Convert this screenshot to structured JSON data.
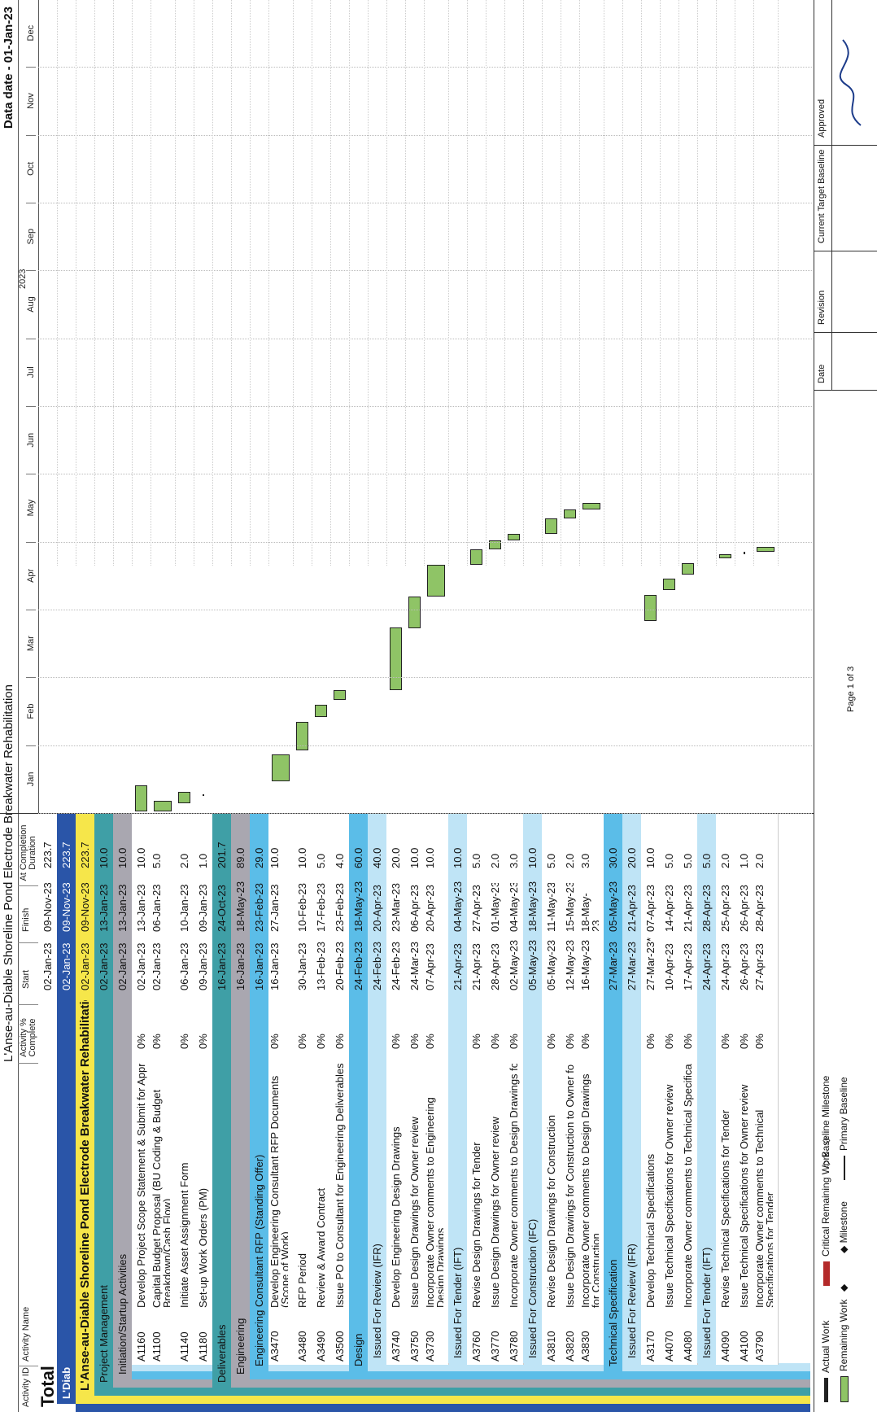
{
  "page": {
    "title": "L'Anse-au-Diable Shoreline Pond Electrode Breakwater Rehabilitation",
    "data_date": "Data date - 01-Jan-23",
    "page_number": "Page 1 of 3"
  },
  "columns": {
    "id": "Activity ID",
    "name": "Activity Name",
    "pct": "Activity % Complete",
    "start": "Start",
    "finish": "Finish",
    "dur": "At Completion Duration"
  },
  "timeline": {
    "year": "2023",
    "months": [
      "Jan",
      "Feb",
      "Mar",
      "Apr",
      "May",
      "Jun",
      "Jul",
      "Aug",
      "Sep",
      "Oct",
      "Nov",
      "Dec"
    ]
  },
  "colors": {
    "total": "#ffffff",
    "l1": "#2a55a8",
    "l2": "#f6e64a",
    "l3": "#3f9fa6",
    "l4": "#a9a7b0",
    "l5": "#5bbde8",
    "l6": "#bfe4f6",
    "bar": "#8fc466"
  },
  "rows": [
    {
      "kind": "group",
      "level": 0,
      "name": "Total",
      "start": "02-Jan-23",
      "finish": "09-Nov-23",
      "dur": "223.7"
    },
    {
      "kind": "group",
      "level": 1,
      "name": "L'Diab",
      "start": "02-Jan-23",
      "finish": "09-Nov-23",
      "dur": "223.7"
    },
    {
      "kind": "group",
      "level": 2,
      "name": "L'Anse-au-Diable Shoreline Pond Electrode Breakwater Rehabilitation",
      "start": "02-Jan-23",
      "finish": "09-Nov-23",
      "dur": "223.7"
    },
    {
      "kind": "group",
      "level": 3,
      "name": "Project Management",
      "start": "02-Jan-23",
      "finish": "13-Jan-23",
      "dur": "10.0"
    },
    {
      "kind": "group",
      "level": 4,
      "name": "Initiation/Startup Activities",
      "start": "02-Jan-23",
      "finish": "13-Jan-23",
      "dur": "10.0"
    },
    {
      "kind": "task",
      "id": "A1160",
      "name": "Develop Project Scope Statement & Submit for Approval",
      "pct": "0%",
      "start": "02-Jan-23",
      "finish": "13-Jan-23",
      "dur": "10.0"
    },
    {
      "kind": "task",
      "id": "A1100",
      "name": "Capital Budget Proposal (BU Coding & Budget Breakdown/Cash Flow)",
      "pct": "0%",
      "start": "02-Jan-23",
      "finish": "06-Jan-23",
      "dur": "5.0",
      "tall": true
    },
    {
      "kind": "task",
      "id": "A1140",
      "name": "Initiate Asset Assignment Form",
      "pct": "0%",
      "start": "06-Jan-23",
      "finish": "10-Jan-23",
      "dur": "2.0"
    },
    {
      "kind": "task",
      "id": "A1180",
      "name": "Set-up Work Orders (PM)",
      "pct": "0%",
      "start": "09-Jan-23",
      "finish": "09-Jan-23",
      "dur": "1.0"
    },
    {
      "kind": "group",
      "level": 3,
      "name": "Deliverables",
      "start": "16-Jan-23",
      "finish": "24-Oct-23",
      "dur": "201.7"
    },
    {
      "kind": "group",
      "level": 4,
      "name": "Engineering",
      "start": "16-Jan-23",
      "finish": "18-May-23",
      "dur": "89.0"
    },
    {
      "kind": "group",
      "level": 5,
      "name": "Engineering Consultant RFP (Standing Offer)",
      "start": "16-Jan-23",
      "finish": "23-Feb-23",
      "dur": "29.0"
    },
    {
      "kind": "task",
      "id": "A3470",
      "name": "Develop Engineering Consultant RFP Documents (Scope of Work)",
      "pct": "0%",
      "start": "16-Jan-23",
      "finish": "27-Jan-23",
      "dur": "10.0",
      "tall": true
    },
    {
      "kind": "task",
      "id": "A3480",
      "name": "RFP Period",
      "pct": "0%",
      "start": "30-Jan-23",
      "finish": "10-Feb-23",
      "dur": "10.0"
    },
    {
      "kind": "task",
      "id": "A3490",
      "name": "Review & Award Contract",
      "pct": "0%",
      "start": "13-Feb-23",
      "finish": "17-Feb-23",
      "dur": "5.0"
    },
    {
      "kind": "task",
      "id": "A3500",
      "name": "Issue PO to Consultant for Engineering Deliverables",
      "pct": "0%",
      "start": "20-Feb-23",
      "finish": "23-Feb-23",
      "dur": "4.0"
    },
    {
      "kind": "group",
      "level": 5,
      "name": "Design",
      "start": "24-Feb-23",
      "finish": "18-May-23",
      "dur": "60.0"
    },
    {
      "kind": "group",
      "level": 6,
      "name": "Issued For Review (IFR)",
      "start": "24-Feb-23",
      "finish": "20-Apr-23",
      "dur": "40.0"
    },
    {
      "kind": "task",
      "id": "A3740",
      "name": "Develop Engineering Design Drawings",
      "pct": "0%",
      "start": "24-Feb-23",
      "finish": "23-Mar-23",
      "dur": "20.0"
    },
    {
      "kind": "task",
      "id": "A3750",
      "name": "Issue Design Drawings for Owner review",
      "pct": "0%",
      "start": "24-Mar-23",
      "finish": "06-Apr-23",
      "dur": "10.0"
    },
    {
      "kind": "task",
      "id": "A3730",
      "name": "Incorporate Owner comments to Engineering Design Drawings",
      "pct": "0%",
      "start": "07-Apr-23",
      "finish": "20-Apr-23",
      "dur": "10.0",
      "tall": true
    },
    {
      "kind": "group",
      "level": 6,
      "name": "Issued For Tender (IFT)",
      "start": "21-Apr-23",
      "finish": "04-May-23",
      "dur": "10.0"
    },
    {
      "kind": "task",
      "id": "A3760",
      "name": "Revise Design Drawings for Tender",
      "pct": "0%",
      "start": "21-Apr-23",
      "finish": "27-Apr-23",
      "dur": "5.0"
    },
    {
      "kind": "task",
      "id": "A3770",
      "name": "Issue Design Drawings for Owner review",
      "pct": "0%",
      "start": "28-Apr-23",
      "finish": "01-May-23",
      "dur": "2.0"
    },
    {
      "kind": "task",
      "id": "A3780",
      "name": "Incorporate Owner comments to Design Drawings for Tender",
      "pct": "0%",
      "start": "02-May-23",
      "finish": "04-May-23",
      "dur": "3.0"
    },
    {
      "kind": "group",
      "level": 6,
      "name": "Issued For Construction (IFC)",
      "start": "05-May-23",
      "finish": "18-May-23",
      "dur": "10.0"
    },
    {
      "kind": "task",
      "id": "A3810",
      "name": "Revise Design Drawings for Construction",
      "pct": "0%",
      "start": "05-May-23",
      "finish": "11-May-23",
      "dur": "5.0"
    },
    {
      "kind": "task",
      "id": "A3820",
      "name": "Issue Design Drawings for Construction to Owner for review",
      "pct": "0%",
      "start": "12-May-23",
      "finish": "15-May-23",
      "dur": "2.0"
    },
    {
      "kind": "task",
      "id": "A3830",
      "name": "Incorporate Owner comments to Design Drawings for Construction",
      "pct": "0%",
      "start": "16-May-23",
      "finish": "18-May-23",
      "dur": "3.0",
      "tall": true
    },
    {
      "kind": "group",
      "level": 5,
      "name": "Technical Specification",
      "start": "27-Mar-23",
      "finish": "05-May-23",
      "dur": "30.0"
    },
    {
      "kind": "group",
      "level": 6,
      "name": "Issued For Review (IFR)",
      "start": "27-Mar-23",
      "finish": "21-Apr-23",
      "dur": "20.0"
    },
    {
      "kind": "task",
      "id": "A3170",
      "name": "Develop Technical Specifications",
      "pct": "0%",
      "start": "27-Mar-23*",
      "finish": "07-Apr-23",
      "dur": "10.0"
    },
    {
      "kind": "task",
      "id": "A4070",
      "name": "Issue Technical Specifications for Owner review",
      "pct": "0%",
      "start": "10-Apr-23",
      "finish": "14-Apr-23",
      "dur": "5.0"
    },
    {
      "kind": "task",
      "id": "A4080",
      "name": "Incorporate Owner comments to Technical Specifications",
      "pct": "0%",
      "start": "17-Apr-23",
      "finish": "21-Apr-23",
      "dur": "5.0"
    },
    {
      "kind": "group",
      "level": 6,
      "name": "Issued For Tender (IFT)",
      "start": "24-Apr-23",
      "finish": "28-Apr-23",
      "dur": "5.0"
    },
    {
      "kind": "task",
      "id": "A4090",
      "name": "Revise Technical Specifications for Tender",
      "pct": "0%",
      "start": "24-Apr-23",
      "finish": "25-Apr-23",
      "dur": "2.0"
    },
    {
      "kind": "task",
      "id": "A4100",
      "name": "Issue Technical Specifications for Owner review",
      "pct": "0%",
      "start": "26-Apr-23",
      "finish": "26-Apr-23",
      "dur": "1.0"
    },
    {
      "kind": "task",
      "id": "A3790",
      "name": "Incorporate Owner comments to Technical Specifications for Tender",
      "pct": "0%",
      "start": "27-Apr-23",
      "finish": "28-Apr-23",
      "dur": "2.0",
      "tall": true
    }
  ],
  "legend": {
    "actual": "Actual Work",
    "remaining": "Remaining Work",
    "critical": "Critical Remaining Work",
    "milestone": "Milestone",
    "baseline_milestone": "Baseline Milestone",
    "primary_baseline": "Primary Baseline"
  },
  "revision_box": {
    "date_header": "Date",
    "revision_header": "Revision",
    "baseline_header": "Current Target Baseline",
    "approved_header": "Approved"
  }
}
